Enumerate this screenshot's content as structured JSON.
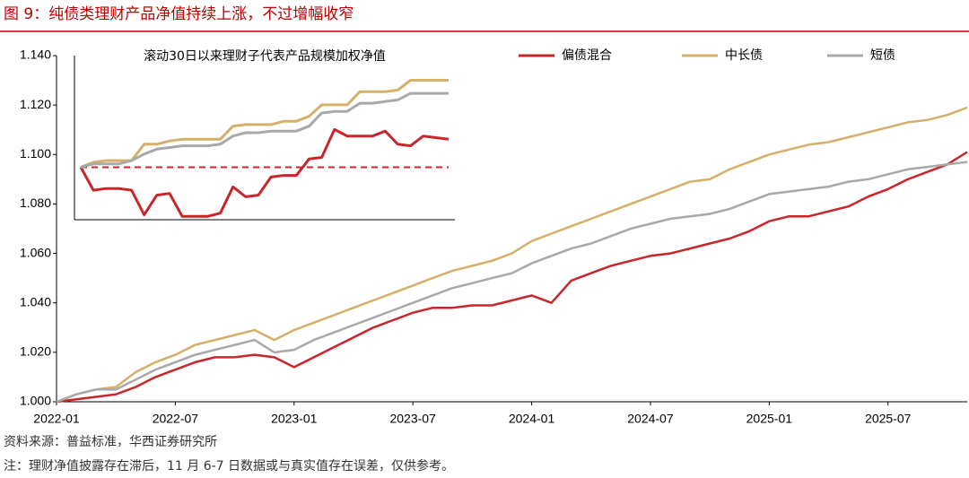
{
  "title": "图 9：纯债类理财产品净值持续上涨，不过增幅收窄",
  "source": "资料来源：普益标准，华西证券研究所",
  "note": "注：理财净值披露存在滞后，11 月 6-7 日数据或与真实值存在误差，仅供参考。",
  "chart_data": [
    {
      "type": "line",
      "legend": "upper right",
      "x": [
        "2022-01",
        "2022-02",
        "2022-03",
        "2022-04",
        "2022-05",
        "2022-06",
        "2022-07",
        "2022-08",
        "2022-09",
        "2022-10",
        "2022-11",
        "2022-12",
        "2023-01",
        "2023-02",
        "2023-03",
        "2023-04",
        "2023-05",
        "2023-06",
        "2023-07",
        "2023-08",
        "2023-09",
        "2023-10",
        "2023-11",
        "2023-12",
        "2024-01",
        "2024-02",
        "2024-03",
        "2024-04",
        "2024-05",
        "2024-06",
        "2024-07",
        "2024-08",
        "2024-09",
        "2024-10",
        "2024-11",
        "2024-12",
        "2025-01",
        "2025-02",
        "2025-03",
        "2025-04",
        "2025-05",
        "2025-06",
        "2025-07",
        "2025-08",
        "2025-09",
        "2025-10",
        "2025-11"
      ],
      "xlim": [
        "2022-01",
        "2025-11"
      ],
      "xticks": [
        "2022-01",
        "2022-07",
        "2023-01",
        "2023-07",
        "2024-01",
        "2024-07",
        "2025-01",
        "2025-07"
      ],
      "ylim": [
        1,
        1.14
      ],
      "yticks": [
        {
          "value": 1,
          "label": "1.000"
        },
        {
          "value": 1.02,
          "label": "1.020"
        },
        {
          "value": 1.04,
          "label": "1.040"
        },
        {
          "value": 1.06,
          "label": "1.060"
        },
        {
          "value": 1.08,
          "label": "1.080"
        },
        {
          "value": 1.1,
          "label": "1.100"
        },
        {
          "value": 1.12,
          "label": "1.120"
        },
        {
          "value": 1.14,
          "label": "1.140"
        }
      ],
      "series": [
        {
          "name": "偏债混合",
          "color": "#c9262b",
          "values": [
            1,
            1.001,
            1.002,
            1.003,
            1.006,
            1.01,
            1.013,
            1.016,
            1.018,
            1.018,
            1.019,
            1.018,
            1.014,
            1.018,
            1.022,
            1.026,
            1.03,
            1.033,
            1.036,
            1.038,
            1.038,
            1.039,
            1.039,
            1.041,
            1.043,
            1.04,
            1.049,
            1.052,
            1.055,
            1.057,
            1.059,
            1.06,
            1.062,
            1.064,
            1.066,
            1.069,
            1.073,
            1.075,
            1.075,
            1.077,
            1.079,
            1.083,
            1.086,
            1.09,
            1.093,
            1.096,
            1.101
          ]
        },
        {
          "name": "中长债",
          "color": "#d4b06a",
          "values": [
            1,
            1.003,
            1.005,
            1.006,
            1.012,
            1.016,
            1.019,
            1.023,
            1.025,
            1.027,
            1.029,
            1.025,
            1.029,
            1.032,
            1.035,
            1.038,
            1.041,
            1.044,
            1.047,
            1.05,
            1.053,
            1.055,
            1.057,
            1.06,
            1.065,
            1.068,
            1.071,
            1.074,
            1.077,
            1.08,
            1.083,
            1.086,
            1.089,
            1.09,
            1.094,
            1.097,
            1.1,
            1.102,
            1.104,
            1.105,
            1.107,
            1.109,
            1.111,
            1.113,
            1.114,
            1.116,
            1.119
          ]
        },
        {
          "name": "短债",
          "color": "#a9a9a9",
          "values": [
            1,
            1.003,
            1.005,
            1.005,
            1.009,
            1.013,
            1.016,
            1.019,
            1.021,
            1.023,
            1.025,
            1.02,
            1.021,
            1.025,
            1.028,
            1.031,
            1.034,
            1.037,
            1.04,
            1.043,
            1.046,
            1.048,
            1.05,
            1.052,
            1.056,
            1.059,
            1.062,
            1.064,
            1.067,
            1.07,
            1.072,
            1.074,
            1.075,
            1.076,
            1.078,
            1.081,
            1.084,
            1.085,
            1.086,
            1.087,
            1.089,
            1.09,
            1.092,
            1.094,
            1.095,
            1.096,
            1.097
          ]
        }
      ]
    },
    {
      "type": "line",
      "title": "滚动30日以来理财子代表产品规模加权净值",
      "ylim": [
        0,
        100
      ],
      "reference": 32,
      "series": [
        {
          "color": "#c9262b",
          "values": [
            32,
            18,
            19,
            19,
            18,
            3,
            15,
            16,
            2,
            2,
            2,
            4,
            20,
            14,
            15,
            26,
            27,
            27,
            37,
            38,
            55,
            51,
            51,
            51,
            54,
            46,
            45,
            51,
            50,
            49
          ]
        },
        {
          "color": "#d4b06a",
          "values": [
            32,
            35,
            36,
            36,
            36,
            46,
            46,
            48,
            49,
            49,
            49,
            49,
            57,
            58,
            58,
            58,
            60,
            60,
            63,
            70,
            70,
            70,
            78,
            78,
            78,
            79,
            85,
            85,
            85,
            85
          ]
        },
        {
          "color": "#a9a9a9",
          "values": [
            32,
            34,
            34,
            34,
            36,
            40,
            43,
            44,
            45,
            45,
            45,
            46,
            51,
            53,
            53,
            54,
            54,
            54,
            57,
            65,
            66,
            66,
            71,
            71,
            72,
            73,
            77,
            77,
            77,
            77
          ]
        }
      ]
    }
  ]
}
